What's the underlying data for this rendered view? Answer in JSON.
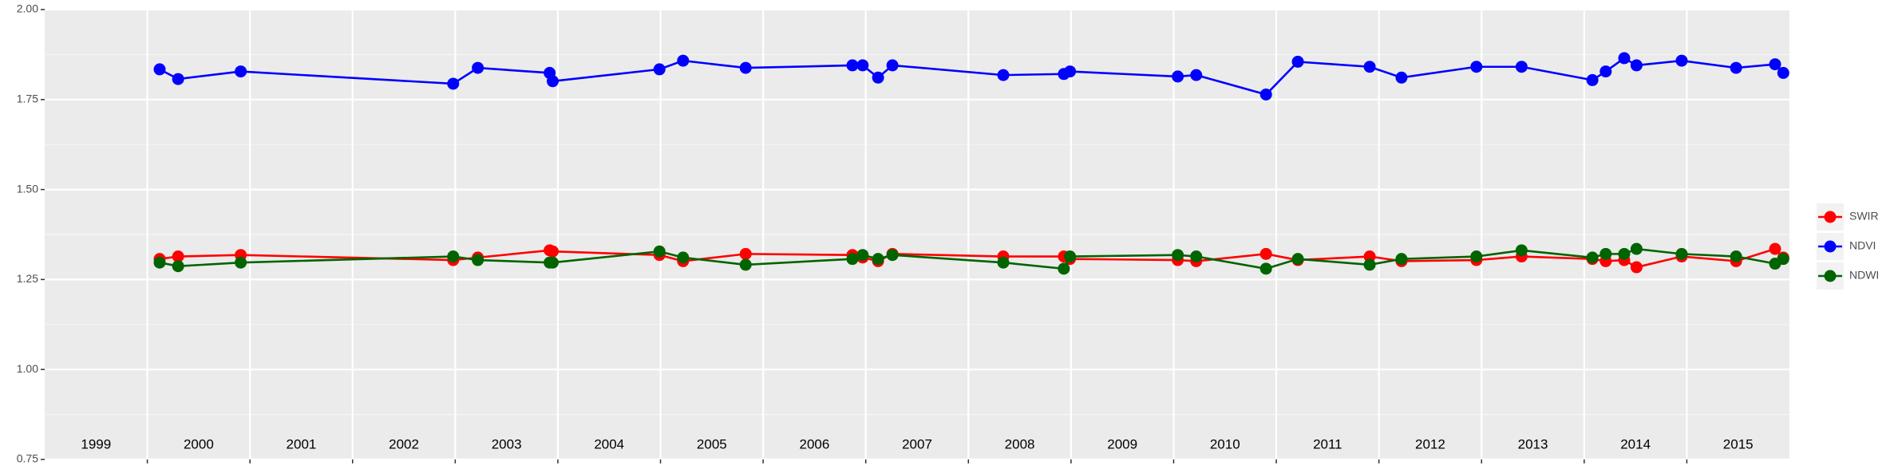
{
  "chart_data": {
    "type": "line",
    "x": [
      2000.12,
      2000.3,
      2000.91,
      2002.98,
      2003.22,
      2003.92,
      2003.95,
      2004.99,
      2005.22,
      2005.83,
      2006.87,
      2006.97,
      2007.12,
      2007.26,
      2008.34,
      2008.93,
      2008.99,
      2010.04,
      2010.22,
      2010.9,
      2011.21,
      2011.91,
      2012.22,
      2012.95,
      2013.39,
      2014.08,
      2014.21,
      2014.39,
      2014.51,
      2014.95,
      2015.48,
      2015.86,
      2015.94
    ],
    "series": [
      {
        "name": "SWIR",
        "color": "#ff0000",
        "values": [
          1.307,
          1.314,
          1.318,
          1.304,
          1.311,
          1.331,
          1.328,
          1.318,
          1.301,
          1.321,
          1.318,
          1.311,
          1.301,
          1.321,
          1.314,
          1.314,
          1.307,
          1.304,
          1.301,
          1.321,
          1.304,
          1.314,
          1.301,
          1.304,
          1.314,
          1.307,
          1.301,
          1.304,
          1.284,
          1.314,
          1.301,
          1.335,
          1.311
        ]
      },
      {
        "name": "NDVI",
        "color": "#0000ff",
        "values": [
          1.834,
          1.807,
          1.828,
          1.794,
          1.838,
          1.824,
          1.801,
          1.834,
          1.858,
          1.838,
          1.845,
          1.845,
          1.811,
          1.845,
          1.818,
          1.821,
          1.828,
          1.814,
          1.818,
          1.764,
          1.855,
          1.841,
          1.811,
          1.841,
          1.841,
          1.804,
          1.828,
          1.865,
          1.845,
          1.858,
          1.838,
          1.848,
          1.824
        ]
      },
      {
        "name": "NDWI",
        "color": "#006400",
        "values": [
          1.297,
          1.287,
          1.297,
          1.314,
          1.304,
          1.297,
          1.297,
          1.328,
          1.311,
          1.291,
          1.307,
          1.318,
          1.307,
          1.318,
          1.297,
          1.28,
          1.314,
          1.318,
          1.314,
          1.28,
          1.307,
          1.291,
          1.307,
          1.314,
          1.331,
          1.311,
          1.321,
          1.321,
          1.335,
          1.321,
          1.314,
          1.294,
          1.307
        ]
      }
    ],
    "xlim": [
      1999,
      2016
    ],
    "xticks": [
      {
        "value": 1999.5,
        "label": "1999"
      },
      {
        "value": 2000.5,
        "label": "2000"
      },
      {
        "value": 2001.5,
        "label": "2001"
      },
      {
        "value": 2002.5,
        "label": "2002"
      },
      {
        "value": 2003.5,
        "label": "2003"
      },
      {
        "value": 2004.5,
        "label": "2004"
      },
      {
        "value": 2005.5,
        "label": "2005"
      },
      {
        "value": 2006.5,
        "label": "2006"
      },
      {
        "value": 2007.5,
        "label": "2007"
      },
      {
        "value": 2008.5,
        "label": "2008"
      },
      {
        "value": 2009.5,
        "label": "2009"
      },
      {
        "value": 2010.5,
        "label": "2010"
      },
      {
        "value": 2011.5,
        "label": "2011"
      },
      {
        "value": 2012.5,
        "label": "2012"
      },
      {
        "value": 2013.5,
        "label": "2013"
      },
      {
        "value": 2014.5,
        "label": "2014"
      },
      {
        "value": 2015.5,
        "label": "2015"
      }
    ],
    "xgrid": [
      2000,
      2001,
      2002,
      2003,
      2004,
      2005,
      2006,
      2007,
      2008,
      2009,
      2010,
      2011,
      2012,
      2013,
      2014,
      2015
    ],
    "ylim": [
      0.75,
      2.0
    ],
    "yticks": [
      {
        "value": 0.75,
        "label": "0.75"
      },
      {
        "value": 1.0,
        "label": "1.00"
      },
      {
        "value": 1.25,
        "label": "1.25"
      },
      {
        "value": 1.5,
        "label": "1.50"
      },
      {
        "value": 1.75,
        "label": "1.75"
      },
      {
        "value": 2.0,
        "label": "2.00"
      }
    ],
    "yminor": [
      0.875,
      1.125,
      1.375,
      1.625,
      1.875
    ],
    "grid": true,
    "legend": "right"
  }
}
